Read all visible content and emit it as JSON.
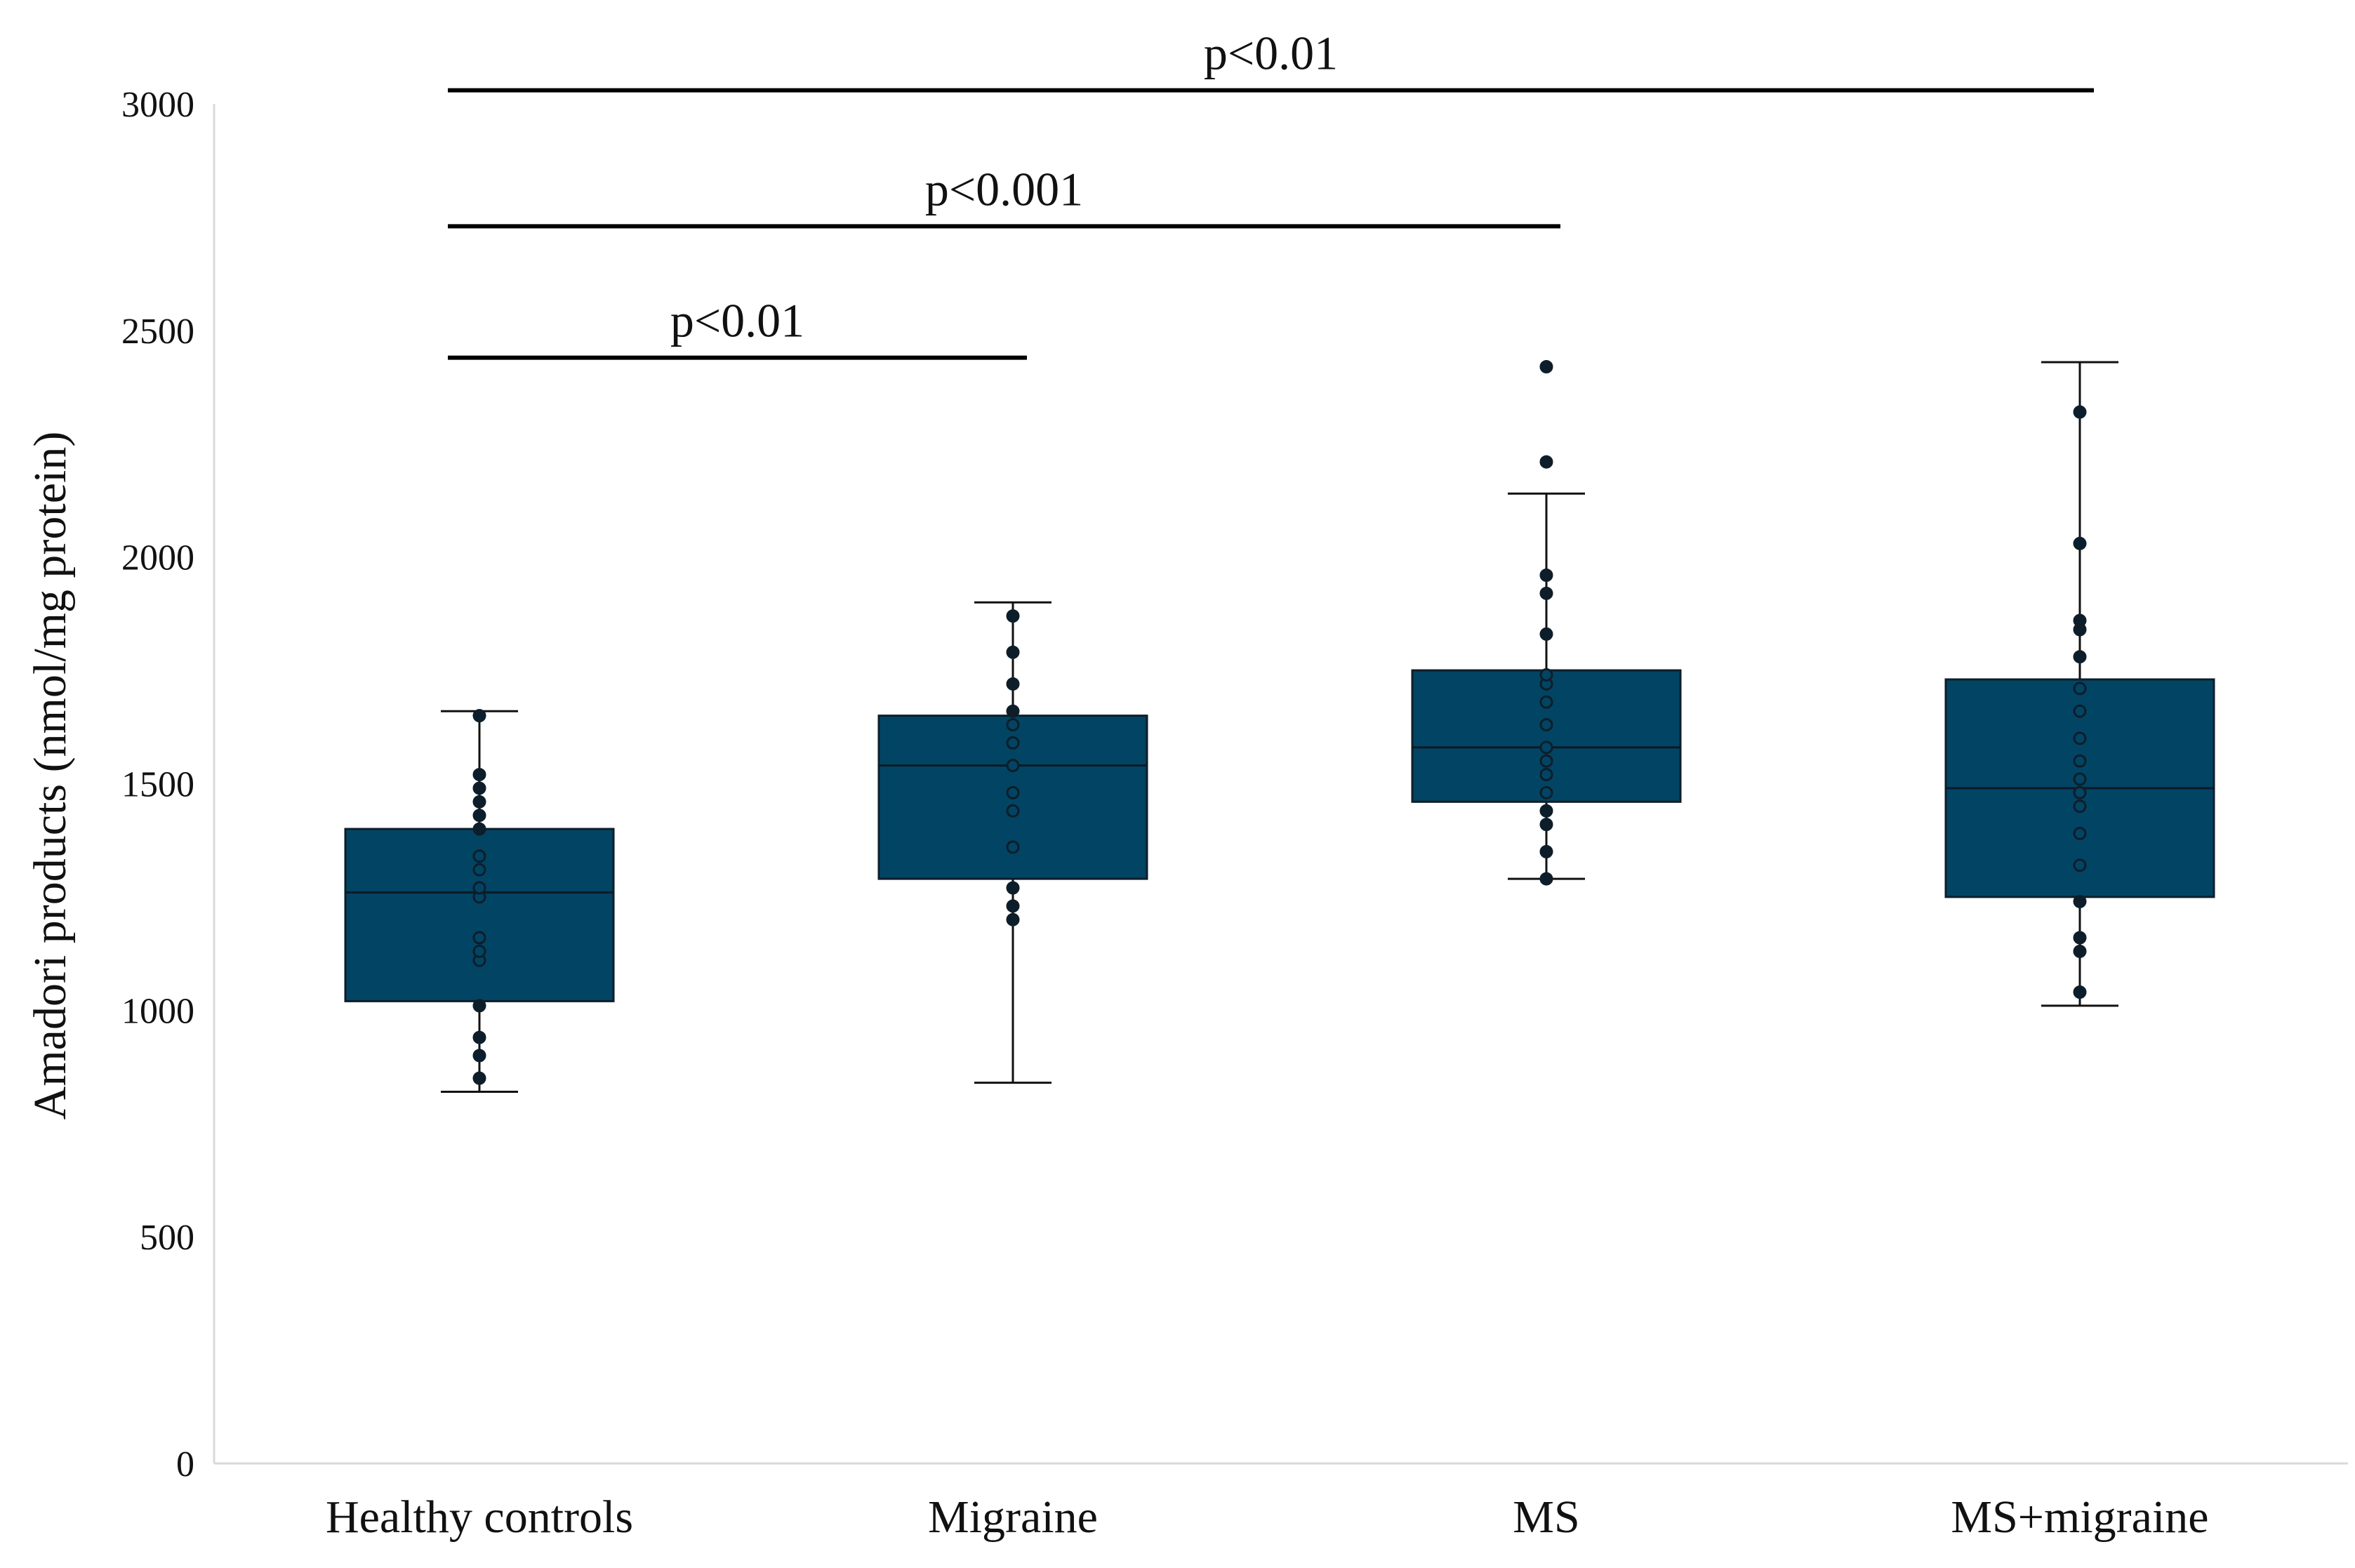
{
  "chart_data": {
    "type": "box",
    "title": "",
    "xlabel": "",
    "ylabel": "Amadori products (nmol/mg protein)",
    "ylim": [
      0,
      3000
    ],
    "yticks": [
      0,
      500,
      1000,
      1500,
      2000,
      2500,
      3000
    ],
    "grid": false,
    "categories": [
      "Healthy controls",
      "Migraine",
      "MS",
      "MS+migraine"
    ],
    "colors": {
      "box_fill": "#024463",
      "box_edge": "#0d1e2a",
      "point": "#0d1e2a"
    },
    "boxes": [
      {
        "name": "Healthy controls",
        "whisker_low": 820,
        "q1": 1020,
        "median": 1260,
        "q3": 1400,
        "whisker_high": 1660,
        "points": [
          850,
          900,
          940,
          1010,
          1110,
          1130,
          1160,
          1250,
          1270,
          1310,
          1340,
          1400,
          1430,
          1460,
          1490,
          1520,
          1650
        ]
      },
      {
        "name": "Migraine",
        "whisker_low": 840,
        "q1": 1290,
        "median": 1540,
        "q3": 1650,
        "whisker_high": 1900,
        "points": [
          1200,
          1230,
          1270,
          1360,
          1440,
          1480,
          1540,
          1590,
          1630,
          1660,
          1720,
          1790,
          1870
        ]
      },
      {
        "name": "MS",
        "whisker_low": 1290,
        "q1": 1460,
        "median": 1580,
        "q3": 1750,
        "whisker_high": 2140,
        "points": [
          1290,
          1350,
          1410,
          1440,
          1480,
          1520,
          1550,
          1580,
          1630,
          1680,
          1720,
          1740,
          1830,
          1920,
          1960,
          2210,
          2420
        ]
      },
      {
        "name": "MS+migraine",
        "whisker_low": 1010,
        "q1": 1250,
        "median": 1490,
        "q3": 1730,
        "whisker_high": 2430,
        "points": [
          1040,
          1130,
          1160,
          1240,
          1320,
          1390,
          1450,
          1480,
          1510,
          1550,
          1600,
          1660,
          1710,
          1780,
          1840,
          1860,
          2030,
          2320
        ]
      }
    ],
    "annotations": [
      {
        "label": "p<0.01",
        "from": "Healthy controls",
        "to": "MS+migraine",
        "y": 3030
      },
      {
        "label": "p<0.001",
        "from": "Healthy controls",
        "to": "MS",
        "y": 2730
      },
      {
        "label": "p<0.01",
        "from": "Healthy controls",
        "to": "Migraine",
        "y": 2440
      }
    ]
  }
}
